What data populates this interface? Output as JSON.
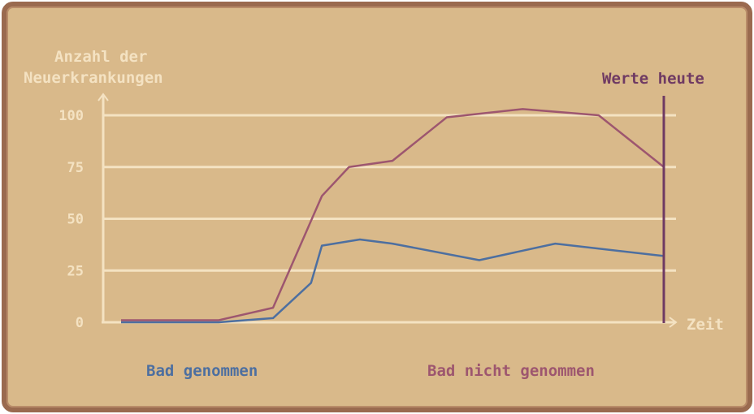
{
  "colors": {
    "background": "#d9b98a",
    "frame": "#9a6a4f",
    "axis": "#f4e2c2",
    "grid": "#f4e2c2",
    "tick_text": "#f4e2c2",
    "bath": "#4d6fa0",
    "no_bath": "#9d566f",
    "today": "#6f3a63"
  },
  "chart_data": {
    "type": "line",
    "ylabel_lines": [
      "Anzahl der",
      "Neuerkrankungen"
    ],
    "xlabel": "Zeit",
    "yticks": [
      0,
      25,
      50,
      75,
      100
    ],
    "ylim": [
      0,
      100
    ],
    "xlim": [
      0,
      100
    ],
    "grid": true,
    "today_label": "Werte heute",
    "today_x": 100,
    "series": [
      {
        "name": "Bad genommen",
        "color": "#4d6fa0",
        "points": [
          [
            0,
            0
          ],
          [
            18,
            0
          ],
          [
            28,
            2
          ],
          [
            35,
            19
          ],
          [
            37,
            37
          ],
          [
            44,
            40
          ],
          [
            50,
            38
          ],
          [
            66,
            30
          ],
          [
            80,
            38
          ],
          [
            100,
            32
          ]
        ]
      },
      {
        "name": "Bad nicht genommen",
        "color": "#9d566f",
        "points": [
          [
            0,
            1
          ],
          [
            18,
            1
          ],
          [
            28,
            7
          ],
          [
            37,
            61
          ],
          [
            42,
            75
          ],
          [
            50,
            78
          ],
          [
            60,
            99
          ],
          [
            74,
            103
          ],
          [
            88,
            100
          ],
          [
            100,
            75
          ]
        ]
      }
    ]
  }
}
